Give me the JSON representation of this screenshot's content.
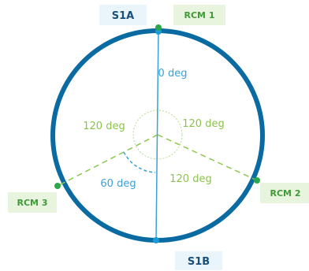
{
  "colors": {
    "ring": "#0a6aa2",
    "axis": "#3aa0d8",
    "dashed": "#8cc84b",
    "center_circle": "#b6dc8e",
    "endpoint_blue": "#1a9ad6",
    "endpoint_green": "#2aa84a",
    "label_box_green": "#e8f4dd",
    "label_box_blue": "#eaf5fb",
    "label_text_dark": "#1a4f7a",
    "label_text_green": "#3f9a37",
    "angle_green": "#8bc34a",
    "angle_blue": "#3aa0d8"
  },
  "labels": {
    "s1a": "S1A",
    "s1b": "S1B",
    "rcm1": "RCM 1",
    "rcm2": "RCM 2",
    "rcm3": "RCM 3"
  },
  "angles": {
    "top": "0 deg",
    "upper_left": "120 deg",
    "upper_right": "120 deg",
    "lower_right": "120 deg",
    "lower_left": "60 deg"
  }
}
